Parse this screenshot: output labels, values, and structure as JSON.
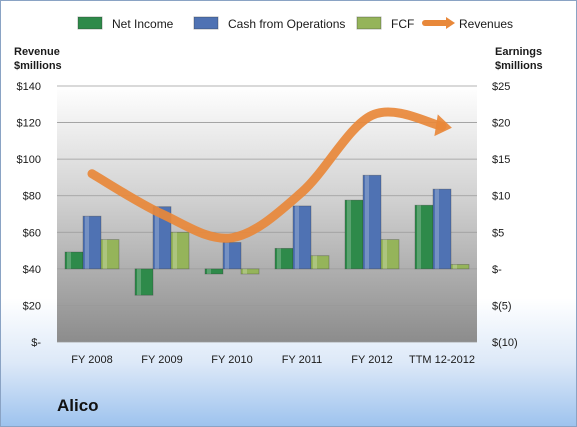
{
  "company": "Alico",
  "chart_data": {
    "type": "bar",
    "categories": [
      "FY 2008",
      "FY 2009",
      "FY 2010",
      "FY 2011",
      "FY 2012",
      "TTM 12-2012"
    ],
    "series": [
      {
        "name": "Net Income",
        "axis": "right",
        "color": "#2e8a4a",
        "values": [
          2.3,
          -3.6,
          -0.7,
          2.8,
          9.4,
          8.7
        ]
      },
      {
        "name": "Cash from Operations",
        "axis": "right",
        "color": "#4f72b3",
        "values": [
          7.2,
          8.5,
          3.6,
          8.6,
          12.8,
          10.9
        ]
      },
      {
        "name": "FCF",
        "axis": "right",
        "color": "#95b45a",
        "values": [
          4.0,
          5.0,
          -0.7,
          1.8,
          4.0,
          0.6
        ]
      },
      {
        "name": "Revenues",
        "axis": "left",
        "type": "line",
        "color": "#e8883a",
        "values": [
          92,
          70,
          57,
          82,
          124,
          118
        ]
      }
    ],
    "left_axis": {
      "title": [
        "Revenue",
        "$millions"
      ],
      "ylim": [
        0,
        140
      ],
      "tick_values": [
        0,
        20,
        40,
        60,
        80,
        100,
        120,
        140
      ],
      "tick_labels": [
        "$-",
        "$20",
        "$40",
        "$60",
        "$80",
        "$100",
        "$120",
        "$140"
      ]
    },
    "right_axis": {
      "title": [
        "Earnings",
        "$millions"
      ],
      "ylim": [
        -10,
        25
      ],
      "tick_values": [
        -10,
        -5,
        0,
        5,
        10,
        15,
        20,
        25
      ],
      "tick_labels": [
        "$(10)",
        "$(5)",
        "$-",
        "$5",
        "$10",
        "$15",
        "$20",
        "$25"
      ]
    },
    "legend_position": "top",
    "grid": true
  }
}
